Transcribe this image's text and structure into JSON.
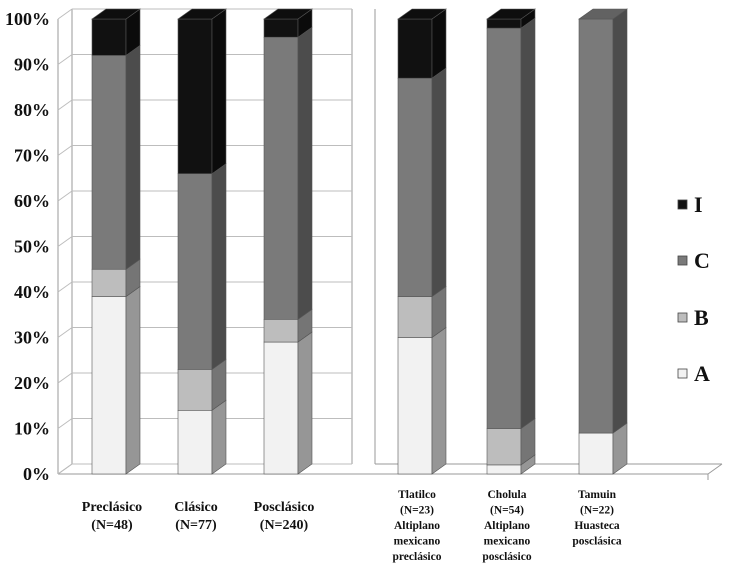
{
  "chart_data": {
    "type": "bar",
    "stacked": true,
    "percent": true,
    "title": "",
    "xlabel": "",
    "ylabel": "",
    "ylim": [
      0,
      100
    ],
    "y_ticks": [
      "0%",
      "10%",
      "20%",
      "30%",
      "40%",
      "50%",
      "60%",
      "70%",
      "80%",
      "90%",
      "100%"
    ],
    "categories": [
      [
        "Preclásico",
        "(N=48)"
      ],
      [
        "Clásico",
        "(N=77)"
      ],
      [
        "Posclásico",
        "(N=240)"
      ],
      [
        "Tlatilco",
        "(N=23)",
        "Altiplano",
        "mexicano",
        "preclásico"
      ],
      [
        "Cholula",
        "(N=54)",
        "Altiplano",
        "mexicano",
        "posclásico"
      ],
      [
        "Tamuin",
        "(N=22)",
        "Huasteca",
        "posclásica"
      ]
    ],
    "series": [
      {
        "name": "A",
        "color": "#f2f2f2",
        "values": [
          39,
          14,
          29,
          30,
          2,
          9
        ]
      },
      {
        "name": "B",
        "color": "#bdbdbd",
        "values": [
          6,
          9,
          5,
          9,
          8,
          0
        ]
      },
      {
        "name": "C",
        "color": "#7a7a7a",
        "values": [
          47,
          43,
          62,
          48,
          88,
          91
        ]
      },
      {
        "name": "I",
        "color": "#111111",
        "values": [
          8,
          34,
          4,
          13,
          2,
          0
        ]
      }
    ],
    "legend": {
      "position": "right",
      "order": [
        "I",
        "C",
        "B",
        "A"
      ]
    }
  }
}
